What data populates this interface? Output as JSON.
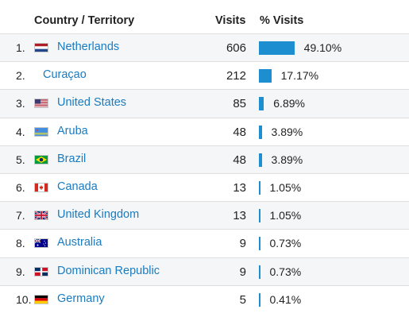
{
  "header": {
    "country_label": "Country / Territory",
    "visits_label": "Visits",
    "pct_label": "% Visits"
  },
  "colors": {
    "link": "#1a7bbf",
    "bar": "#1d8fd0"
  },
  "rows": [
    {
      "rank": "1.",
      "country": "Netherlands",
      "flag": "netherlands-flag-icon",
      "visits": "606",
      "pct": "49.10%",
      "fraction": 0.491
    },
    {
      "rank": "2.",
      "country": "Curaçao",
      "flag": "",
      "visits": "212",
      "pct": "17.17%",
      "fraction": 0.1717
    },
    {
      "rank": "3.",
      "country": "United States",
      "flag": "united-states-flag-icon",
      "visits": "85",
      "pct": "6.89%",
      "fraction": 0.0689
    },
    {
      "rank": "4.",
      "country": "Aruba",
      "flag": "aruba-flag-icon",
      "visits": "48",
      "pct": "3.89%",
      "fraction": 0.0389
    },
    {
      "rank": "5.",
      "country": "Brazil",
      "flag": "brazil-flag-icon",
      "visits": "48",
      "pct": "3.89%",
      "fraction": 0.0389
    },
    {
      "rank": "6.",
      "country": "Canada",
      "flag": "canada-flag-icon",
      "visits": "13",
      "pct": "1.05%",
      "fraction": 0.0105
    },
    {
      "rank": "7.",
      "country": "United Kingdom",
      "flag": "united-kingdom-flag-icon",
      "visits": "13",
      "pct": "1.05%",
      "fraction": 0.0105
    },
    {
      "rank": "8.",
      "country": "Australia",
      "flag": "australia-flag-icon",
      "visits": "9",
      "pct": "0.73%",
      "fraction": 0.0073
    },
    {
      "rank": "9.",
      "country": "Dominican Republic",
      "flag": "dominican-republic-flag-icon",
      "visits": "9",
      "pct": "0.73%",
      "fraction": 0.0073
    },
    {
      "rank": "10.",
      "country": "Germany",
      "flag": "germany-flag-icon",
      "visits": "5",
      "pct": "0.41%",
      "fraction": 0.0041
    }
  ]
}
